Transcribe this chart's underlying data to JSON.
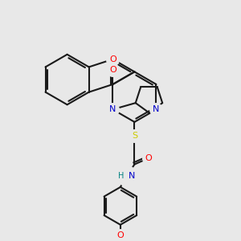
{
  "bg_color": "#e8e8e8",
  "bond_color": "#1a1a1a",
  "atom_colors": {
    "O": "#ff0000",
    "N": "#0000cc",
    "S": "#cccc00",
    "H": "#008080",
    "C": "#1a1a1a"
  },
  "figure_size": [
    3.0,
    3.0
  ],
  "dpi": 100
}
